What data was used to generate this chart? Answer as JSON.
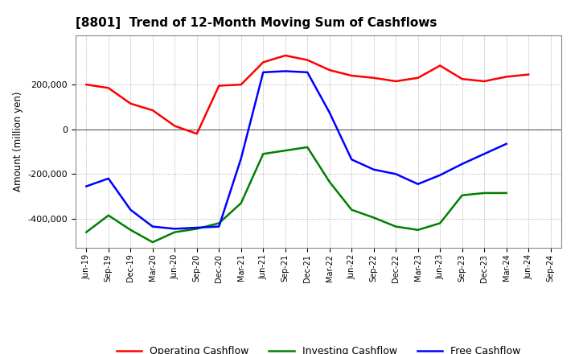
{
  "title": "[8801]  Trend of 12-Month Moving Sum of Cashflows",
  "ylabel": "Amount (million yen)",
  "ylim": [
    -530000,
    420000
  ],
  "yticks": [
    -400000,
    -200000,
    0,
    200000
  ],
  "background_color": "#ffffff",
  "grid_color": "#999999",
  "x_labels": [
    "Jun-19",
    "Sep-19",
    "Dec-19",
    "Mar-20",
    "Jun-20",
    "Sep-20",
    "Dec-20",
    "Mar-21",
    "Jun-21",
    "Sep-21",
    "Dec-21",
    "Mar-22",
    "Jun-22",
    "Sep-22",
    "Dec-22",
    "Mar-23",
    "Jun-23",
    "Sep-23",
    "Dec-23",
    "Mar-24",
    "Jun-24",
    "Sep-24"
  ],
  "operating": [
    200000,
    185000,
    115000,
    85000,
    15000,
    -20000,
    195000,
    200000,
    300000,
    330000,
    310000,
    265000,
    240000,
    230000,
    215000,
    230000,
    285000,
    225000,
    215000,
    235000,
    245000,
    null
  ],
  "investing": [
    -460000,
    -385000,
    -450000,
    -505000,
    -460000,
    -445000,
    -420000,
    -330000,
    -110000,
    -95000,
    -80000,
    -235000,
    -360000,
    -395000,
    -435000,
    -450000,
    -420000,
    -295000,
    -285000,
    -285000,
    null,
    null
  ],
  "free": [
    -255000,
    -220000,
    -360000,
    -435000,
    -445000,
    -440000,
    -435000,
    -130000,
    255000,
    260000,
    255000,
    75000,
    -135000,
    -180000,
    -200000,
    -245000,
    -205000,
    -155000,
    -110000,
    -65000,
    null,
    null
  ],
  "operating_color": "#ff0000",
  "investing_color": "#008000",
  "free_color": "#0000ff",
  "line_width": 1.8
}
